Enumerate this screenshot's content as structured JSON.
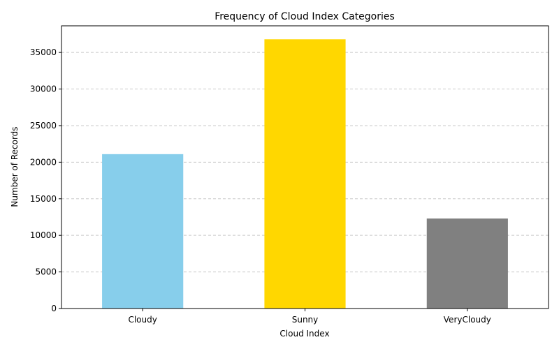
{
  "chart_data": {
    "type": "bar",
    "title": "Frequency of Cloud Index Categories",
    "xlabel": "Cloud Index",
    "ylabel": "Number of Records",
    "categories": [
      "Cloudy",
      "Sunny",
      "VeryCloudy"
    ],
    "values": [
      21100,
      36800,
      12300
    ],
    "colors": [
      "#87CEEB",
      "#FFD700",
      "#808080"
    ],
    "ylim": [
      0,
      38640
    ],
    "yticks": [
      0,
      5000,
      10000,
      15000,
      20000,
      25000,
      30000,
      35000
    ],
    "grid": "y-dashed",
    "legend": "none"
  }
}
